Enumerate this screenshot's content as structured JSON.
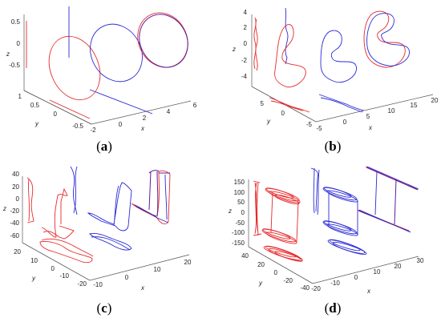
{
  "colors": {
    "red": "#e8292b",
    "blue": "#2b2bd6",
    "purple": "#5a1f9a"
  },
  "chart_data": [
    {
      "type": "line3d",
      "caption": "a",
      "xlabel": "x",
      "ylabel": "y",
      "zlabel": "z",
      "z_ticks": [
        "0.5",
        "0",
        "-0.5"
      ],
      "y_ticks": [
        "1",
        "0.5",
        "0",
        "-0.5"
      ],
      "x_ticks": [
        "-2",
        "0",
        "2",
        "4",
        "6"
      ]
    },
    {
      "type": "line3d",
      "caption": "b",
      "xlabel": "x",
      "ylabel": "y",
      "zlabel": "z",
      "z_ticks": [
        "4",
        "2",
        "0",
        "-2",
        "-4"
      ],
      "y_ticks": [
        "5",
        "0",
        "-5"
      ],
      "x_ticks": [
        "-5",
        "0",
        "5",
        "10",
        "15",
        "20"
      ]
    },
    {
      "type": "line3d",
      "caption": "c",
      "xlabel": "x",
      "ylabel": "y",
      "zlabel": "z",
      "z_ticks": [
        "40",
        "20",
        "0",
        "-20",
        "-40",
        "-60"
      ],
      "y_ticks": [
        "20",
        "10",
        "0",
        "-10",
        "-20"
      ],
      "x_ticks": [
        "-10",
        "0",
        "10",
        "20"
      ]
    },
    {
      "type": "line3d",
      "caption": "d",
      "xlabel": "x",
      "ylabel": "y",
      "zlabel": "z",
      "z_ticks": [
        "150",
        "100",
        "50",
        "0",
        "-50",
        "-100",
        "-150"
      ],
      "y_ticks": [
        "40",
        "20",
        "0",
        "-20",
        "-40"
      ],
      "x_ticks": [
        "-20",
        "-10",
        "0",
        "10",
        "20",
        "30"
      ]
    }
  ]
}
